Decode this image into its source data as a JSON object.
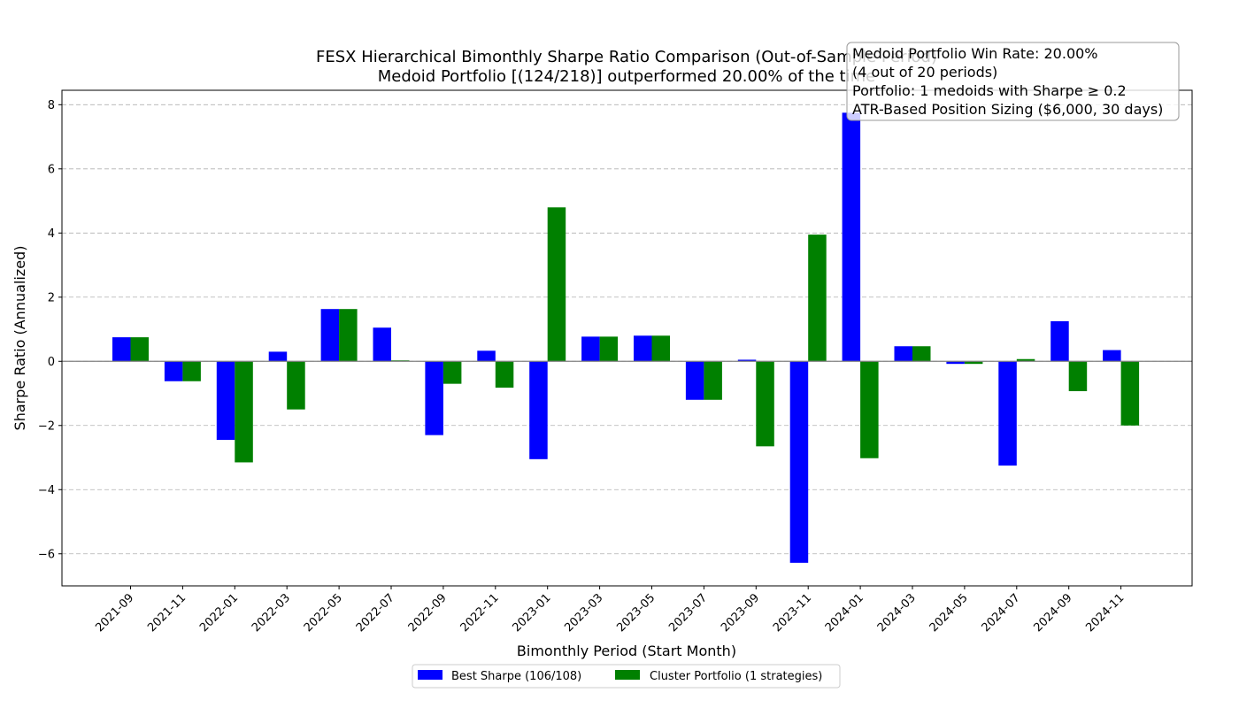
{
  "chart_data": {
    "type": "bar",
    "title": "FESX Hierarchical Bimonthly Sharpe Ratio Comparison (Out-of-Sample Period)",
    "subtitle": "Medoid Portfolio [(124/218)] outperformed 20.00% of the time",
    "xlabel": "Bimonthly Period (Start Month)",
    "ylabel": "Sharpe Ratio (Annualized)",
    "ylim": [
      -7.0,
      8.45
    ],
    "yticks": [
      -6,
      -4,
      -2,
      0,
      2,
      4,
      6,
      8
    ],
    "ytick_labels": [
      "−6",
      "−4",
      "−2",
      "0",
      "2",
      "4",
      "6",
      "8"
    ],
    "grid": true,
    "legend_position": "bottom-center",
    "categories": [
      "2021-09",
      "2021-11",
      "2022-01",
      "2022-03",
      "2022-05",
      "2022-07",
      "2022-09",
      "2022-11",
      "2023-01",
      "2023-03",
      "2023-05",
      "2023-07",
      "2023-09",
      "2023-11",
      "2024-01",
      "2024-03",
      "2024-05",
      "2024-07",
      "2024-09",
      "2024-11"
    ],
    "series": [
      {
        "name": "Best Sharpe (106/108)",
        "color": "#0000ff",
        "values": [
          0.75,
          -0.62,
          -2.45,
          0.3,
          1.63,
          1.05,
          -2.3,
          0.33,
          -3.05,
          0.77,
          0.8,
          -1.2,
          0.05,
          -6.28,
          7.75,
          0.47,
          -0.08,
          -3.25,
          1.25,
          0.35
        ]
      },
      {
        "name": "Cluster Portfolio (1 strategies)",
        "color": "#008000",
        "values": [
          0.75,
          -0.62,
          -3.15,
          -1.5,
          1.63,
          0.03,
          -0.7,
          -0.82,
          4.8,
          0.77,
          0.8,
          -1.2,
          -2.65,
          3.95,
          -3.02,
          0.47,
          -0.08,
          0.07,
          -0.93,
          -2.0
        ]
      }
    ],
    "annotation": [
      "Medoid Portfolio Win Rate: 20.00%",
      "(4 out of 20 periods)",
      "Portfolio: 1 medoids with Sharpe ≥ 0.2",
      "ATR-Based Position Sizing ($6,000, 30 days)"
    ]
  }
}
